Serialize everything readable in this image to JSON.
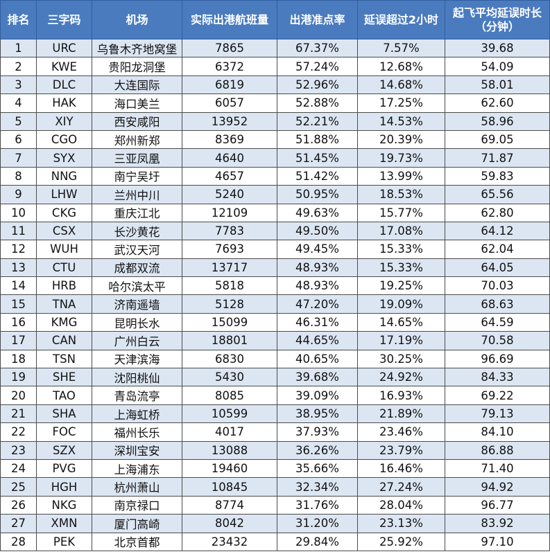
{
  "table": {
    "headers": [
      "排名",
      "三字码",
      "机场",
      "实际出港航班量",
      "出港准点率",
      "延误超过2小时",
      [
        "起飞平均延误时长",
        "（分钟）"
      ]
    ],
    "rows": [
      [
        "1",
        "URC",
        "乌鲁木齐地窝堡",
        "7865",
        "67.37%",
        "7.57%",
        "39.68"
      ],
      [
        "2",
        "KWE",
        "贵阳龙洞堡",
        "6372",
        "57.24%",
        "12.68%",
        "54.09"
      ],
      [
        "3",
        "DLC",
        "大连国际",
        "6819",
        "52.96%",
        "14.68%",
        "58.01"
      ],
      [
        "4",
        "HAK",
        "海口美兰",
        "6057",
        "52.88%",
        "17.25%",
        "62.60"
      ],
      [
        "5",
        "XIY",
        "西安咸阳",
        "13952",
        "52.21%",
        "14.53%",
        "58.96"
      ],
      [
        "6",
        "CGO",
        "郑州新郑",
        "8369",
        "51.88%",
        "20.39%",
        "69.05"
      ],
      [
        "7",
        "SYX",
        "三亚凤凰",
        "4640",
        "51.45%",
        "19.73%",
        "71.87"
      ],
      [
        "8",
        "NNG",
        "南宁吴圩",
        "4657",
        "51.42%",
        "13.99%",
        "59.83"
      ],
      [
        "9",
        "LHW",
        "兰州中川",
        "5240",
        "50.95%",
        "18.53%",
        "65.56"
      ],
      [
        "10",
        "CKG",
        "重庆江北",
        "12109",
        "49.63%",
        "15.77%",
        "62.80"
      ],
      [
        "11",
        "CSX",
        "长沙黄花",
        "7783",
        "49.50%",
        "17.08%",
        "64.12"
      ],
      [
        "12",
        "WUH",
        "武汉天河",
        "7693",
        "49.45%",
        "15.33%",
        "62.04"
      ],
      [
        "13",
        "CTU",
        "成都双流",
        "13717",
        "48.93%",
        "15.33%",
        "64.05"
      ],
      [
        "14",
        "HRB",
        "哈尔滨太平",
        "5818",
        "48.93%",
        "19.25%",
        "70.03"
      ],
      [
        "15",
        "TNA",
        "济南遥墙",
        "5128",
        "47.20%",
        "19.09%",
        "68.63"
      ],
      [
        "16",
        "KMG",
        "昆明长水",
        "15099",
        "46.31%",
        "14.65%",
        "64.59"
      ],
      [
        "17",
        "CAN",
        "广州白云",
        "18801",
        "44.65%",
        "17.19%",
        "70.58"
      ],
      [
        "18",
        "TSN",
        "天津滨海",
        "6830",
        "40.65%",
        "30.25%",
        "96.69"
      ],
      [
        "19",
        "SHE",
        "沈阳桃仙",
        "5430",
        "39.68%",
        "24.92%",
        "84.33"
      ],
      [
        "20",
        "TAO",
        "青岛流亭",
        "8085",
        "39.09%",
        "16.93%",
        "69.22"
      ],
      [
        "21",
        "SHA",
        "上海虹桥",
        "10599",
        "38.95%",
        "21.89%",
        "79.13"
      ],
      [
        "22",
        "FOC",
        "福州长乐",
        "4017",
        "37.93%",
        "23.46%",
        "84.10"
      ],
      [
        "23",
        "SZX",
        "深圳宝安",
        "13088",
        "36.26%",
        "23.79%",
        "86.88"
      ],
      [
        "24",
        "PVG",
        "上海浦东",
        "19460",
        "35.66%",
        "16.46%",
        "71.40"
      ],
      [
        "25",
        "HGH",
        "杭州萧山",
        "10845",
        "32.34%",
        "27.24%",
        "94.92"
      ],
      [
        "26",
        "NKG",
        "南京禄口",
        "8774",
        "31.76%",
        "28.04%",
        "96.77"
      ],
      [
        "27",
        "XMN",
        "厦门高崎",
        "8042",
        "31.20%",
        "23.13%",
        "83.92"
      ],
      [
        "28",
        "PEK",
        "北京首都",
        "23432",
        "29.84%",
        "25.92%",
        "97.10"
      ]
    ]
  }
}
